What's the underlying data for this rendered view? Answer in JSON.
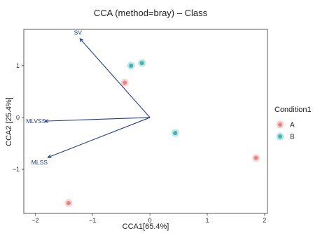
{
  "chart_data": {
    "type": "scatter",
    "title": "CCA (method=bray) – Class",
    "xlabel": "CCA1[65.4%]",
    "ylabel": "CCA2 [25.4%]",
    "xlim": [
      -2.2,
      2.05
    ],
    "ylim": [
      -1.85,
      1.7
    ],
    "x_ticks": [
      -2,
      -1,
      0,
      1,
      2
    ],
    "y_ticks": [
      -1,
      0,
      1
    ],
    "x_tick_labels": [
      "−2",
      "−1",
      "0",
      "1",
      "2"
    ],
    "y_tick_labels": [
      "−1",
      "0",
      "1"
    ],
    "grid": false,
    "legend": {
      "title": "Condition1",
      "position": "right",
      "entries": [
        "A",
        "B"
      ]
    },
    "series": [
      {
        "name": "A",
        "color": "#ea8580",
        "points": [
          {
            "x": -0.44,
            "y": 0.67
          },
          {
            "x": 1.85,
            "y": -0.78
          },
          {
            "x": -1.42,
            "y": -1.65
          }
        ]
      },
      {
        "name": "B",
        "color": "#3fb7b2",
        "points": [
          {
            "x": -0.33,
            "y": 1.0
          },
          {
            "x": -0.14,
            "y": 1.05
          },
          {
            "x": 0.44,
            "y": -0.3
          }
        ]
      }
    ],
    "vectors": [
      {
        "label": "SV",
        "x": -1.22,
        "y": 1.52
      },
      {
        "label": "MLVSS",
        "x": -1.83,
        "y": -0.07
      },
      {
        "label": "MLSS",
        "x": -1.78,
        "y": -0.77
      }
    ],
    "vector_color": "#1f3a9b"
  }
}
